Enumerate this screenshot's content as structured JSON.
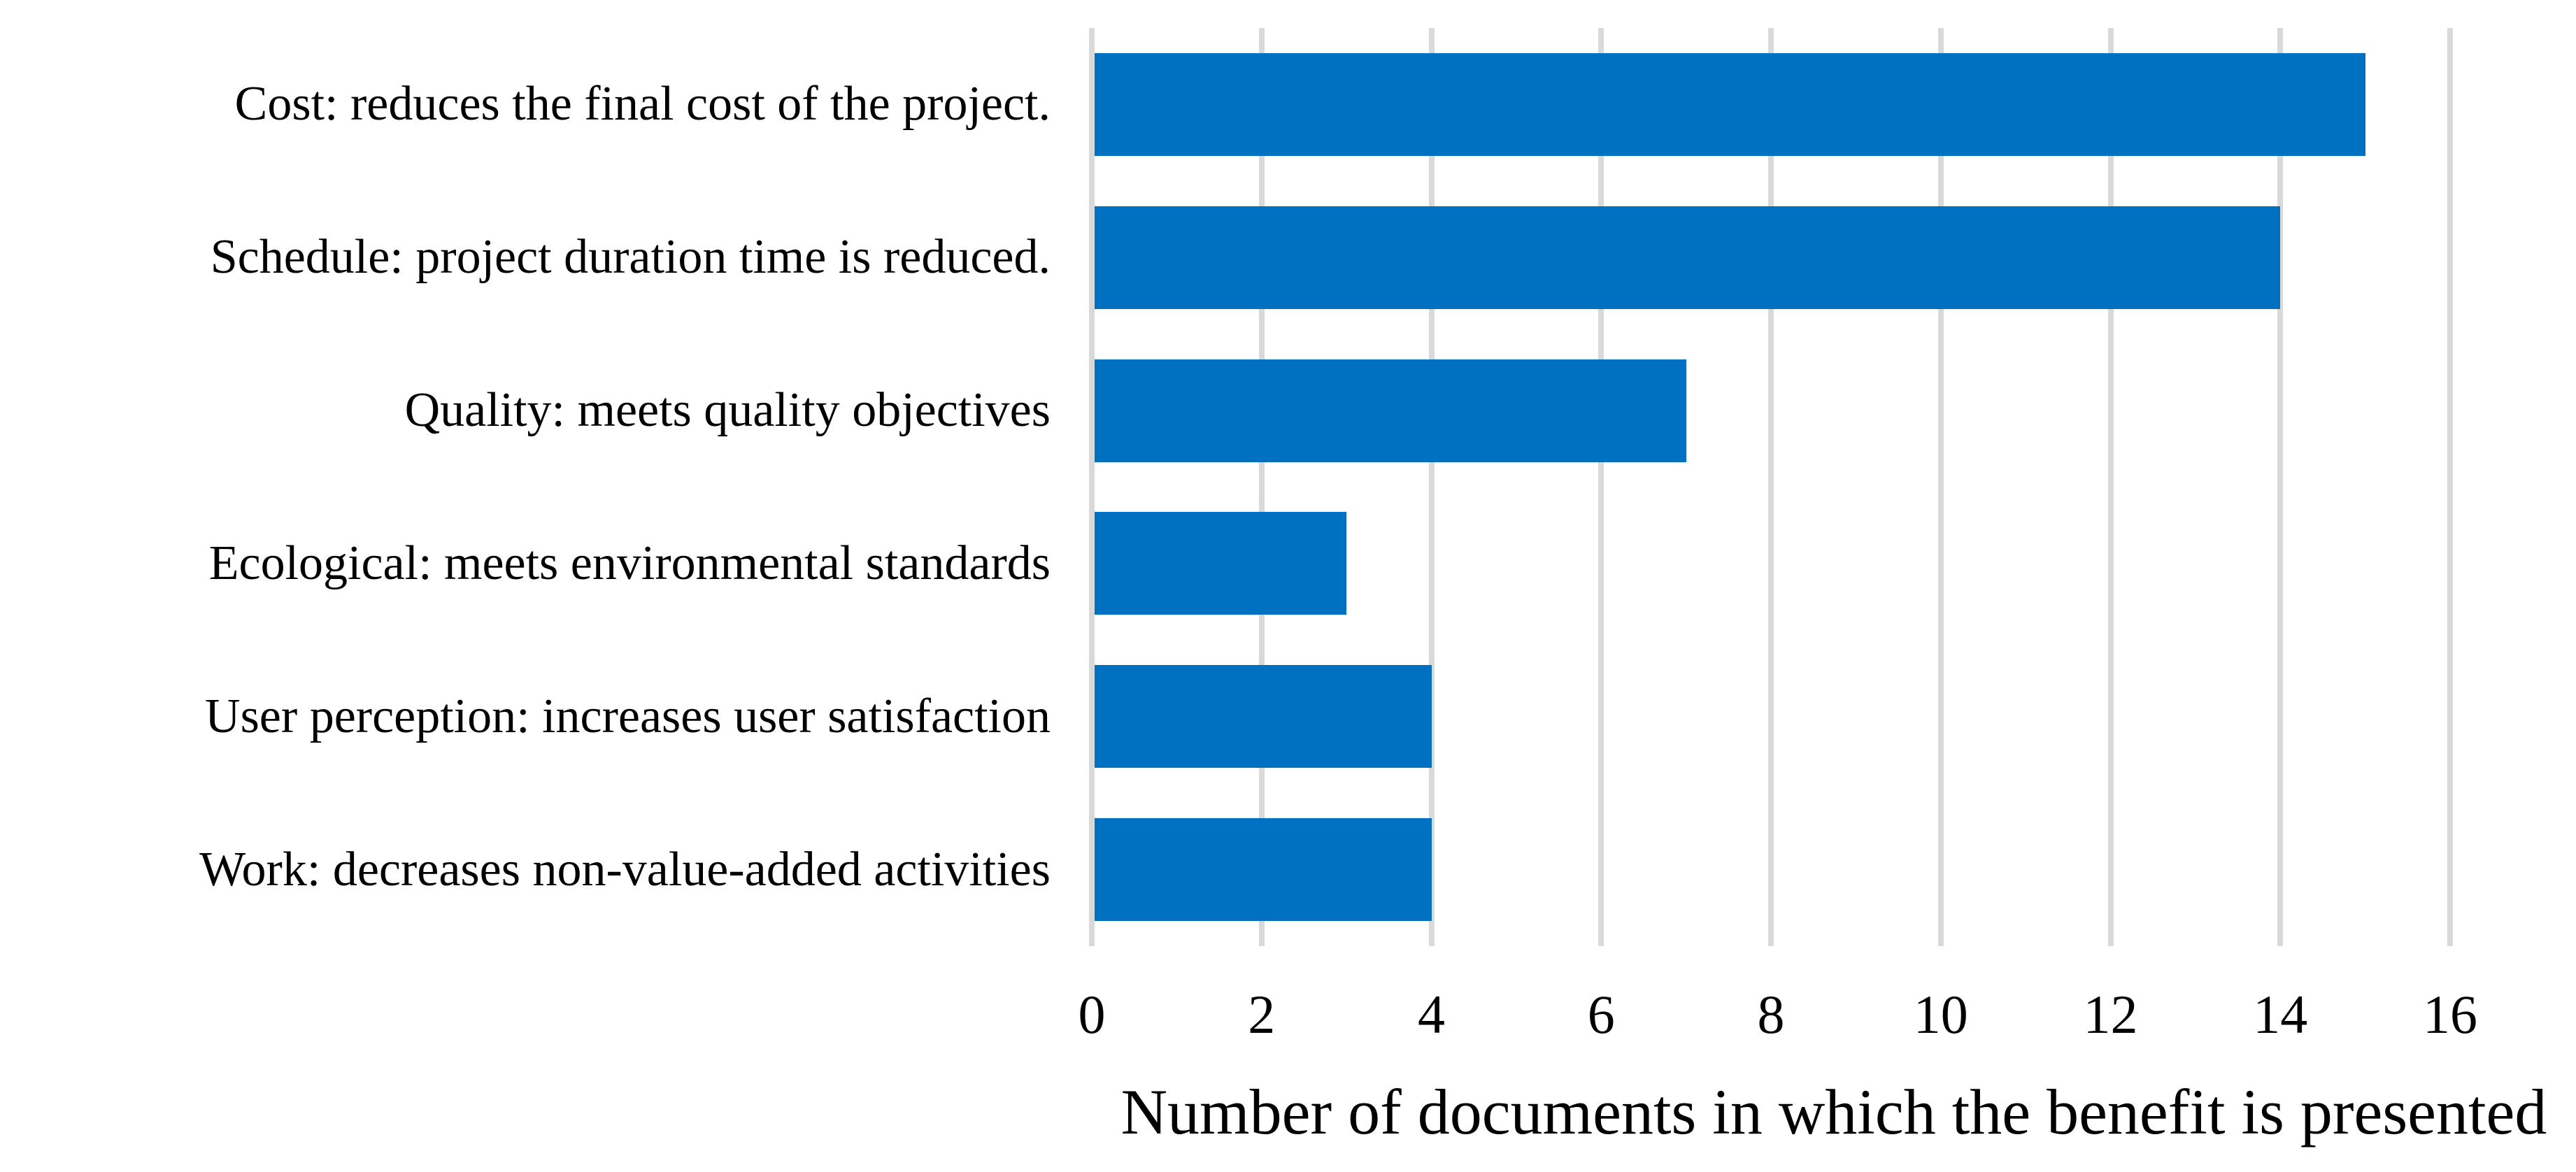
{
  "chart_data": {
    "type": "bar",
    "orientation": "horizontal",
    "title": "",
    "xlabel": "Number of documents in which the benefit is presented",
    "ylabel": "",
    "categories": [
      "Cost: reduces the final cost of the project.",
      "Schedule: project duration time is reduced.",
      "Quality: meets quality objectives",
      "Ecological: meets environmental standards",
      "User perception: increases user satisfaction",
      "Work: decreases non-value-added activities"
    ],
    "values": [
      15,
      14,
      7,
      3,
      4,
      4
    ],
    "xlim": [
      0,
      16
    ],
    "xticks": [
      0,
      2,
      4,
      6,
      8,
      10,
      12,
      14,
      16
    ],
    "grid": "vertical-gridlines-on",
    "legend": "none",
    "colors": {
      "bar": "#0070C0",
      "gridline": "#D9D9D9",
      "axis_line": "#D9D9D9",
      "text": "#000000",
      "background": "#FFFFFF"
    }
  }
}
